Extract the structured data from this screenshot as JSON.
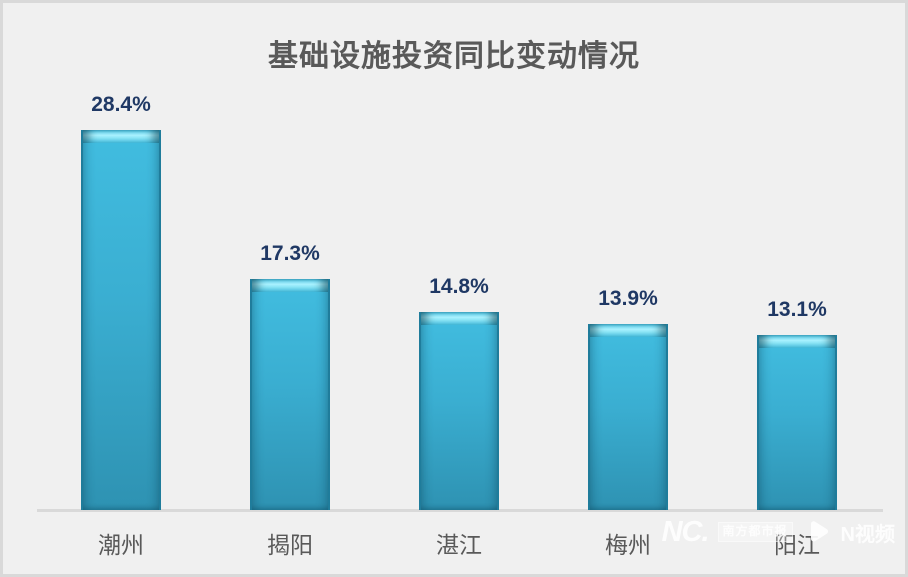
{
  "chart_data": {
    "type": "bar",
    "title": "基础设施投资同比变动情况",
    "categories": [
      "潮州",
      "揭阳",
      "湛江",
      "梅州",
      "阳江"
    ],
    "values": [
      28.4,
      17.3,
      14.8,
      13.9,
      13.1
    ],
    "value_labels": [
      "28.4%",
      "17.3%",
      "14.8%",
      "13.9%",
      "13.1%"
    ],
    "unit": "%",
    "xlabel": "",
    "ylabel": "",
    "ylim": [
      0,
      30
    ],
    "grid": false,
    "legend_position": "none",
    "value_labels_position": "above-bars",
    "axis_shown": "x-baseline-only"
  },
  "colors": {
    "background": "#f0f0f0",
    "frame_border": "#d9d9d9",
    "title_text": "#595959",
    "bar_fill_top": "#41bde0",
    "bar_fill_bottom": "#2e92b2",
    "bar_edge": "#1f7c9b",
    "bar_cap_highlight": "#a9f2ff",
    "value_label_text": "#1f3864",
    "category_label_text": "#595959",
    "axis_line": "#d9d9d9",
    "watermark_text": "#ffffff"
  },
  "watermark": {
    "logo_text": "NC.",
    "newspaper_name": "南方都市报",
    "video_brand": "N视频"
  }
}
